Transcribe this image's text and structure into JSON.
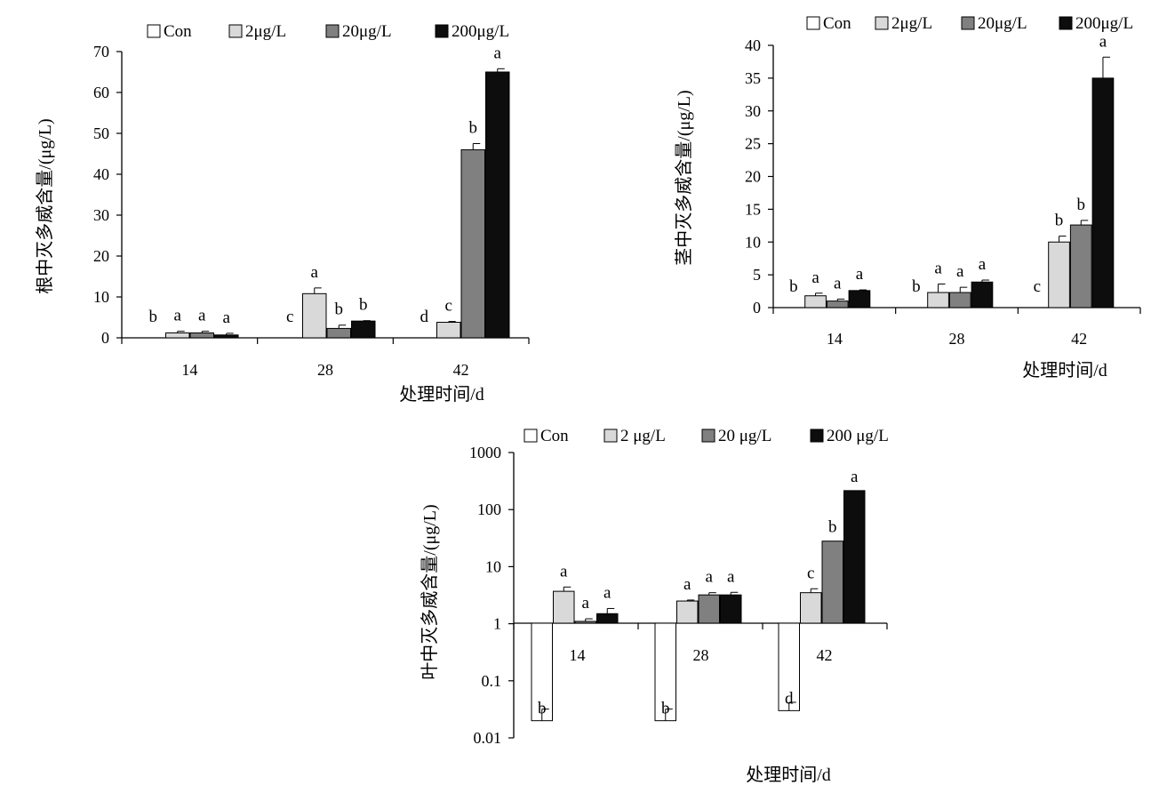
{
  "legend": [
    "Con",
    "2μg/L",
    "20μg/L",
    "200μg/L"
  ],
  "legend_leaf": [
    "Con",
    "2 μg/L",
    "20  μg/L",
    "200 μg/L"
  ],
  "series_colors": [
    "#ffffff",
    "#d9d9d9",
    "#808080",
    "#0d0d0d"
  ],
  "chart_data": [
    {
      "id": "root",
      "type": "bar",
      "ylabel": "根中灭多威含量/(μg/L)",
      "xlabel": "处理时间/d",
      "categories": [
        "14",
        "28",
        "42"
      ],
      "ylim": [
        0,
        70
      ],
      "yticks": [
        "0",
        "10",
        "20",
        "30",
        "40",
        "50",
        "60",
        "70"
      ],
      "series": [
        {
          "name": "Con",
          "values": [
            0,
            0,
            0
          ],
          "errors": [
            0,
            0,
            0
          ],
          "letters": [
            "b",
            "c",
            "d"
          ]
        },
        {
          "name": "2μg/L",
          "values": [
            1.2,
            10.8,
            3.8
          ],
          "errors": [
            0.4,
            1.4,
            0.2
          ],
          "letters": [
            "a",
            "a",
            "c"
          ]
        },
        {
          "name": "20μg/L",
          "values": [
            1.2,
            2.3,
            46
          ],
          "errors": [
            0.4,
            0.8,
            1.5
          ],
          "letters": [
            "a",
            "b",
            "b"
          ]
        },
        {
          "name": "200μg/L",
          "values": [
            0.7,
            4.1,
            65
          ],
          "errors": [
            0.4,
            0.1,
            0.8
          ],
          "letters": [
            "a",
            "b",
            "a"
          ]
        }
      ]
    },
    {
      "id": "stem",
      "type": "bar",
      "ylabel": "茎中灭多威含量/(μg/L)",
      "xlabel": "处理时间/d",
      "categories": [
        "14",
        "28",
        "42"
      ],
      "ylim": [
        0,
        40
      ],
      "yticks": [
        "0",
        "5",
        "10",
        "15",
        "20",
        "25",
        "30",
        "35",
        "40"
      ],
      "series": [
        {
          "name": "Con",
          "values": [
            0,
            0,
            0
          ],
          "errors": [
            0,
            0,
            0
          ],
          "letters": [
            "b",
            "b",
            "c"
          ]
        },
        {
          "name": "2μg/L",
          "values": [
            1.8,
            2.3,
            10
          ],
          "errors": [
            0.4,
            1.3,
            0.9
          ],
          "letters": [
            "a",
            "a",
            "b"
          ]
        },
        {
          "name": "20μg/L",
          "values": [
            1.0,
            2.3,
            12.6
          ],
          "errors": [
            0.3,
            0.8,
            0.7
          ],
          "letters": [
            "a",
            "a",
            "b"
          ]
        },
        {
          "name": "200μg/L",
          "values": [
            2.6,
            3.9,
            35
          ],
          "errors": [
            0.1,
            0.3,
            3.2
          ],
          "letters": [
            "a",
            "a",
            "a"
          ]
        }
      ]
    },
    {
      "id": "leaf",
      "type": "bar",
      "scale": "log",
      "ylabel": "叶中灭多威含量/(μg/L)",
      "xlabel": "处理时间/d",
      "categories": [
        "14",
        "28",
        "42"
      ],
      "ylim": [
        0.01,
        1000
      ],
      "yticks": [
        "0.01",
        "0.1",
        "1",
        "10",
        "100",
        "1000"
      ],
      "series": [
        {
          "name": "Con",
          "values": [
            0.02,
            0.02,
            0.03
          ],
          "errors": [
            0.012,
            0.012,
            0.012
          ],
          "letters": [
            "b",
            "b",
            "d"
          ]
        },
        {
          "name": "2 μg/L",
          "values": [
            3.7,
            2.5,
            3.5
          ],
          "errors": [
            0.7,
            0.1,
            0.6
          ],
          "letters": [
            "a",
            "a",
            "c"
          ]
        },
        {
          "name": "20  μg/L",
          "values": [
            1.1,
            3.2,
            28
          ],
          "errors": [
            0.12,
            0.3,
            0
          ],
          "letters": [
            "a",
            "a",
            "b"
          ]
        },
        {
          "name": "200 μg/L",
          "values": [
            1.5,
            3.2,
            215
          ],
          "errors": [
            0.35,
            0.35,
            0
          ],
          "letters": [
            "a",
            "a",
            "a"
          ]
        }
      ]
    }
  ]
}
